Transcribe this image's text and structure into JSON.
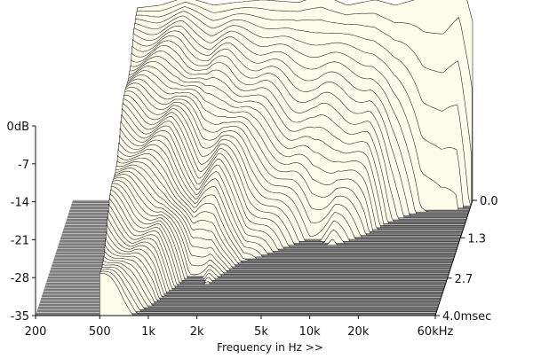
{
  "chart_data": {
    "type": "waterfall-3d",
    "xlabel": "Frequency in Hz >>",
    "x_scale": "log",
    "x_range": [
      200,
      60000
    ],
    "x_ticks": [
      "200",
      "500",
      "1k",
      "2k",
      "5k",
      "10k",
      "20k",
      "60kHz"
    ],
    "x_tick_values": [
      200,
      500,
      1000,
      2000,
      5000,
      10000,
      20000,
      60000
    ],
    "y_unit": "dB",
    "y_range": [
      -35,
      0
    ],
    "y_ticks": [
      "0dB",
      "-7",
      "-14",
      "-21",
      "-28",
      "-35"
    ],
    "y_tick_values": [
      0,
      -7,
      -14,
      -21,
      -28,
      -35
    ],
    "z_ticks": [
      "0.0",
      "1.3",
      "2.7",
      "4.0msec"
    ],
    "z_tick_values": [
      0.0,
      1.3,
      2.7,
      4.0
    ],
    "z_range": [
      0,
      4.0
    ],
    "slice_count": 60,
    "initial_response_db": [
      {
        "hz": 500,
        "db": 0.5
      },
      {
        "hz": 700,
        "db": 1.0
      },
      {
        "hz": 1000,
        "db": 2.5
      },
      {
        "hz": 1500,
        "db": 1.0
      },
      {
        "hz": 2000,
        "db": 1.5
      },
      {
        "hz": 3000,
        "db": 2.0
      },
      {
        "hz": 5000,
        "db": 1.5
      },
      {
        "hz": 7000,
        "db": 3.0
      },
      {
        "hz": 10000,
        "db": 1.0
      },
      {
        "hz": 15000,
        "db": 2.0
      },
      {
        "hz": 20000,
        "db": 1.0
      },
      {
        "hz": 30000,
        "db": 2.5
      },
      {
        "hz": 40000,
        "db": 3.0
      },
      {
        "hz": 50000,
        "db": 7.0
      },
      {
        "hz": 60000,
        "db": -2.0
      }
    ],
    "decay_time_ms": [
      {
        "hz": 500,
        "ms": 5.0
      },
      {
        "hz": 700,
        "ms": 4.2
      },
      {
        "hz": 1000,
        "ms": 3.6
      },
      {
        "hz": 1500,
        "ms": 2.6
      },
      {
        "hz": 2000,
        "ms": 2.8
      },
      {
        "hz": 3000,
        "ms": 2.0
      },
      {
        "hz": 5000,
        "ms": 1.6
      },
      {
        "hz": 7000,
        "ms": 1.3
      },
      {
        "hz": 10000,
        "ms": 1.5
      },
      {
        "hz": 15000,
        "ms": 1.2
      },
      {
        "hz": 20000,
        "ms": 0.8
      },
      {
        "hz": 30000,
        "ms": 0.4
      },
      {
        "hz": 50000,
        "ms": 0.3
      },
      {
        "hz": 60000,
        "ms": 0.2
      }
    ],
    "colors": {
      "surface": "#fdfcea",
      "slice_line": "#2b2b2b",
      "floor": "#7a7a7a",
      "floor_stripe": "#c8c8c8",
      "axis": "#111111"
    }
  }
}
